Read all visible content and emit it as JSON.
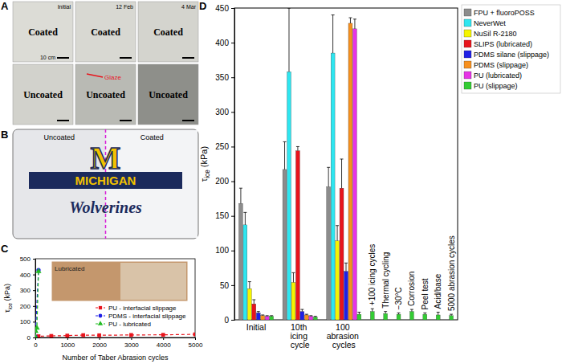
{
  "photos": {
    "A": {
      "panel_label": "A",
      "columns": [
        "Initial",
        "12 Feb",
        "4 Mar"
      ],
      "rows": [
        "Coated",
        "Uncoated"
      ],
      "annotation": "Glaze",
      "scale_bar": "10 cm"
    },
    "B": {
      "panel_label": "B",
      "sides": [
        "Uncoated",
        "Coated"
      ],
      "plate_text": [
        "M",
        "MICHIGAN",
        "Wolverines"
      ]
    }
  },
  "chart_data": [
    {
      "type": "line",
      "panel_label": "C",
      "x_label": "Number of Taber Abrasion cycles",
      "y_label": "τice (kPa)",
      "xlim": [
        0,
        5000
      ],
      "ylim": [
        0,
        500
      ],
      "xticks": [
        0,
        1000,
        2000,
        3000,
        4000,
        5000
      ],
      "yticks": [
        0,
        100,
        200,
        300,
        400,
        500
      ],
      "legend": "lower right",
      "annotations": [
        "Lubricated"
      ],
      "series": [
        {
          "name": "PU - interfacial slippage",
          "color": "#e8141c",
          "marker": "square",
          "line_style": "dashed",
          "x": [
            0,
            100,
            500,
            1000,
            1500,
            2000,
            3000,
            4000,
            5000
          ],
          "values": [
            5,
            8,
            10,
            12,
            15,
            14,
            16,
            17,
            20
          ]
        },
        {
          "name": "PDMS - interfacial slippage",
          "color": "#1f1fe6",
          "marker": "circle",
          "line_style": "dashed",
          "x": [
            0,
            100
          ],
          "values": [
            5,
            428
          ]
        },
        {
          "name": "PU - lubricated",
          "color": "#22bb22",
          "marker": "triangle",
          "line_style": "dashed",
          "x": [
            0,
            10,
            50,
            100
          ],
          "values": [
            5,
            40,
            60,
            420
          ]
        }
      ]
    },
    {
      "type": "bar",
      "panel_label": "D",
      "y_label": "τice (kPa)",
      "ylim": [
        0,
        450
      ],
      "yticks": [
        0,
        50,
        100,
        150,
        200,
        250,
        300,
        350,
        400,
        450
      ],
      "legend": "right",
      "categories": [
        "Initial",
        "10th icing cycle",
        "100 abrasion cycles",
        "+100 icing cycles",
        "Thermal cycling",
        "−30°C",
        "Corrosion",
        "Peel test",
        "Acid/base",
        "5000 abrasion cycles"
      ],
      "series": [
        {
          "name": "FPU + fluoroPOSS",
          "color": "#8c8c8c",
          "values": [
            168,
            217,
            192,
            null,
            null,
            null,
            null,
            null,
            null,
            null
          ],
          "errors": [
            22,
            40,
            28,
            null,
            null,
            null,
            null,
            null,
            null,
            null
          ]
        },
        {
          "name": "NeverWet",
          "color": "#2ee6f0",
          "values": [
            137,
            358,
            385,
            null,
            null,
            null,
            null,
            null,
            null,
            null
          ],
          "errors": [
            18,
            92,
            55,
            null,
            null,
            null,
            null,
            null,
            null,
            null
          ]
        },
        {
          "name": "NuSil R-2180",
          "color": "#f5f500",
          "values": [
            45,
            54,
            114,
            null,
            null,
            null,
            null,
            null,
            null,
            null
          ],
          "errors": [
            10,
            14,
            22,
            null,
            null,
            null,
            null,
            null,
            null,
            null
          ]
        },
        {
          "name": "SLIPS (lubricated)",
          "color": "#e8141c",
          "values": [
            23,
            244,
            190,
            null,
            null,
            null,
            null,
            null,
            null,
            null
          ],
          "errors": [
            6,
            6,
            42,
            null,
            null,
            null,
            null,
            null,
            null,
            null
          ]
        },
        {
          "name": "PDMS silane (slippage)",
          "color": "#1f1fe6",
          "values": [
            10,
            12,
            70,
            null,
            null,
            null,
            null,
            null,
            null,
            null
          ],
          "errors": [
            2,
            3,
            12,
            null,
            null,
            null,
            null,
            null,
            null,
            null
          ]
        },
        {
          "name": "PDMS (slippage)",
          "color": "#f7901e",
          "values": [
            6,
            7,
            428,
            null,
            null,
            null,
            null,
            null,
            null,
            null
          ],
          "errors": [
            1,
            1,
            8,
            null,
            null,
            null,
            null,
            null,
            null,
            null
          ]
        },
        {
          "name": "PU (lubricated)",
          "color": "#e633e6",
          "values": [
            5,
            5,
            420,
            null,
            null,
            null,
            null,
            null,
            null,
            null
          ],
          "errors": [
            1,
            1,
            14,
            null,
            null,
            null,
            null,
            null,
            null,
            null
          ]
        },
        {
          "name": "PU (slippage)",
          "color": "#33cc33",
          "values": [
            5,
            4,
            8,
            12,
            9,
            8,
            12,
            8,
            7,
            6
          ],
          "errors": [
            1,
            1,
            3,
            4,
            3,
            2,
            3,
            2,
            4,
            2
          ]
        }
      ]
    }
  ]
}
